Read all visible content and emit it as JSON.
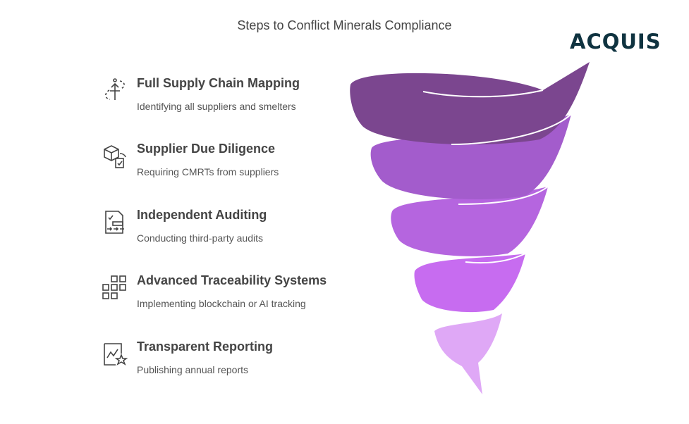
{
  "title": "Steps to Conflict Minerals Compliance",
  "logo": "ACQUIS",
  "colors": {
    "band1": "#7b468f",
    "band2": "#a35ccc",
    "band3": "#b565df",
    "band4": "#c76cf0",
    "band5": "#dfa8f6",
    "logo": "#0f3340",
    "text": "#444444"
  },
  "steps": [
    {
      "icon": "route-mapping-icon",
      "heading": "Full Supply Chain Mapping",
      "description": "Identifying all suppliers and smelters"
    },
    {
      "icon": "package-check-icon",
      "heading": "Supplier Due Diligence",
      "description": "Requiring CMRTs from suppliers"
    },
    {
      "icon": "checklist-audit-icon",
      "heading": "Independent Auditing",
      "description": "Conducting third-party audits"
    },
    {
      "icon": "grid-network-icon",
      "heading": "Advanced Traceability Systems",
      "description": "Implementing blockchain or AI tracking"
    },
    {
      "icon": "chart-star-icon",
      "heading": "Transparent Reporting",
      "description": "Publishing annual reports"
    }
  ]
}
